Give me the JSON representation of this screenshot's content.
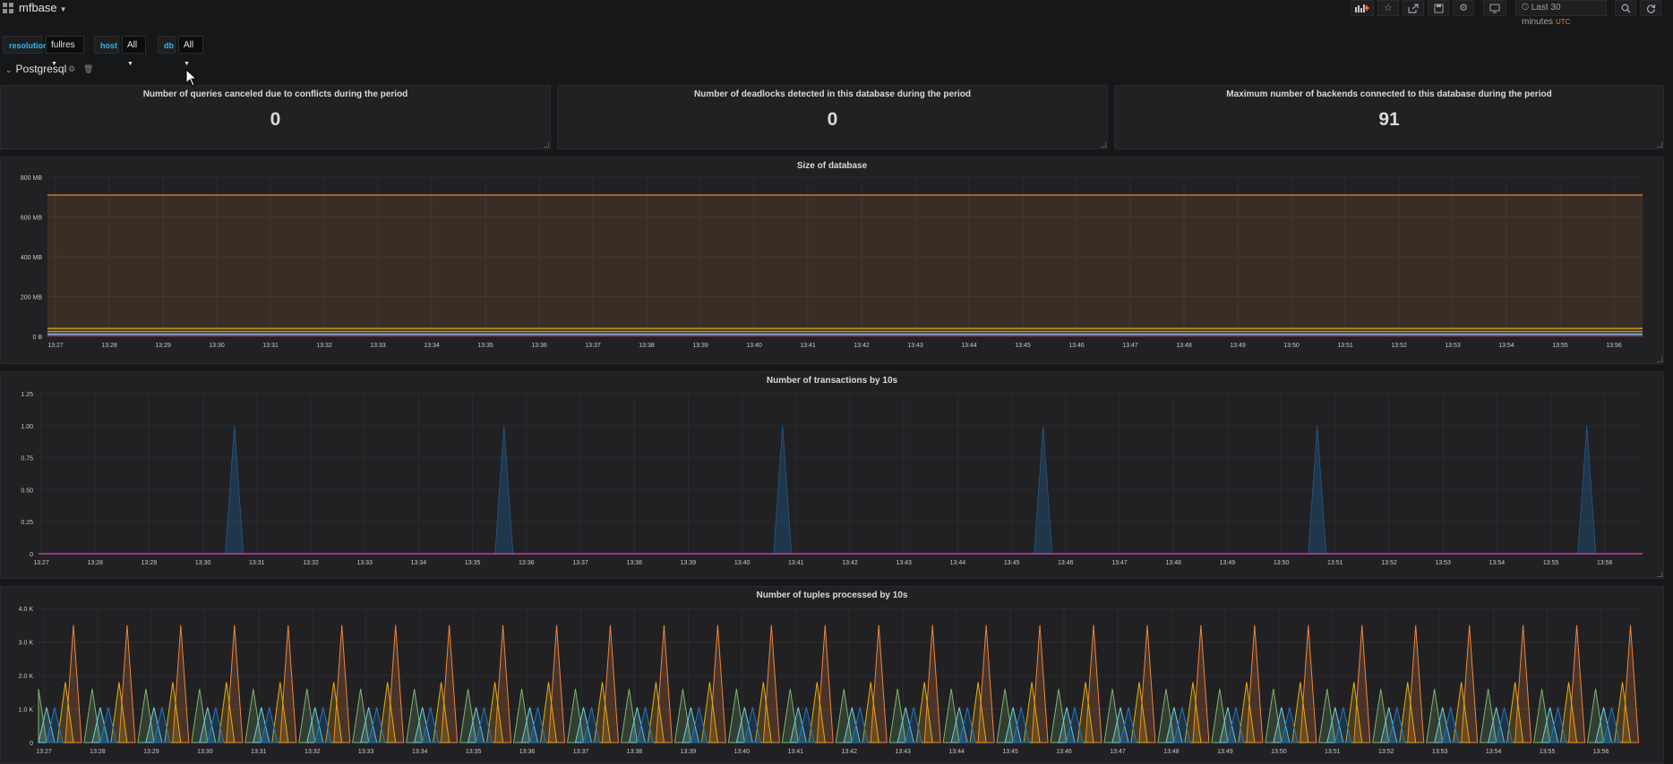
{
  "topbar": {
    "title": "mfbase",
    "time_range": "Last 30 minutes",
    "timezone": "UTC"
  },
  "variables": {
    "resolution_label": "resolution",
    "resolution_value": "fullres",
    "host_label": "host",
    "host_value": "All",
    "db_label": "db",
    "db_value": "All"
  },
  "row": {
    "title": "Postgresql"
  },
  "stats": [
    {
      "title": "Number of queries canceled due to conflicts during the period",
      "value": "0"
    },
    {
      "title": "Number of deadlocks detected in this database during the period",
      "value": "0"
    },
    {
      "title": "Maximum number of backends connected to this database during the period",
      "value": "91"
    }
  ],
  "time_ticks": [
    "13:27",
    "13:28",
    "13:29",
    "13:30",
    "13:31",
    "13:32",
    "13:33",
    "13:34",
    "13:35",
    "13:36",
    "13:37",
    "13:38",
    "13:39",
    "13:40",
    "13:41",
    "13:42",
    "13:43",
    "13:44",
    "13:45",
    "13:46",
    "13:47",
    "13:48",
    "13:49",
    "13:50",
    "13:51",
    "13:52",
    "13:53",
    "13:54",
    "13:55",
    "13:56"
  ],
  "chart_data": [
    {
      "type": "area",
      "title": "Size of database",
      "y_ticks": [
        "800 MB",
        "600 MB",
        "400 MB",
        "200 MB",
        "0 B"
      ],
      "ylim": [
        0,
        800
      ],
      "unit": "MB",
      "series": [
        {
          "values": [
            710
          ],
          "color": "#ef843c"
        },
        {
          "values": [
            40
          ],
          "color": "#e5ac0e"
        },
        {
          "values": [
            25
          ],
          "color": "#7eb26d"
        },
        {
          "values": [
            12
          ],
          "color": "#6ed0e0"
        },
        {
          "values": [
            5
          ],
          "color": "#ba43a9"
        }
      ]
    },
    {
      "type": "area",
      "title": "Number of transactions by 10s",
      "y_ticks": [
        "1.25",
        "1.00",
        "0.75",
        "0.50",
        "0.25",
        "0"
      ],
      "ylim": [
        0,
        1.25
      ],
      "spikes": [
        {
          "time": "13:30:35",
          "value": 1.0
        },
        {
          "time": "13:35:35",
          "value": 1.0
        },
        {
          "time": "13:40:45",
          "value": 1.0
        },
        {
          "time": "13:45:35",
          "value": 1.0
        },
        {
          "time": "13:50:40",
          "value": 1.0
        },
        {
          "time": "13:55:40",
          "value": 1.0
        }
      ],
      "series_color": "#1f78c1",
      "baseline_color": "#ba43a9"
    },
    {
      "type": "area",
      "title": "Number of tuples processed by 10s",
      "y_ticks": [
        "4.0 K",
        "3.0 K",
        "2.0 K",
        "1.0 K",
        "0"
      ],
      "ylim": [
        0,
        4000
      ],
      "period_minutes": 1,
      "series": [
        {
          "color": "#ef843c",
          "peak": 3500,
          "offset_min": 0.65
        },
        {
          "color": "#e5ac0e",
          "peak": 1800,
          "offset_min": 0.5
        },
        {
          "color": "#7eb26d",
          "peak": 1600,
          "offset_min": 0.0
        },
        {
          "color": "#6ed0e0",
          "peak": 1050,
          "offset_min": 0.15
        },
        {
          "color": "#1f78c1",
          "peak": 1050,
          "offset_min": 0.3
        }
      ]
    }
  ]
}
